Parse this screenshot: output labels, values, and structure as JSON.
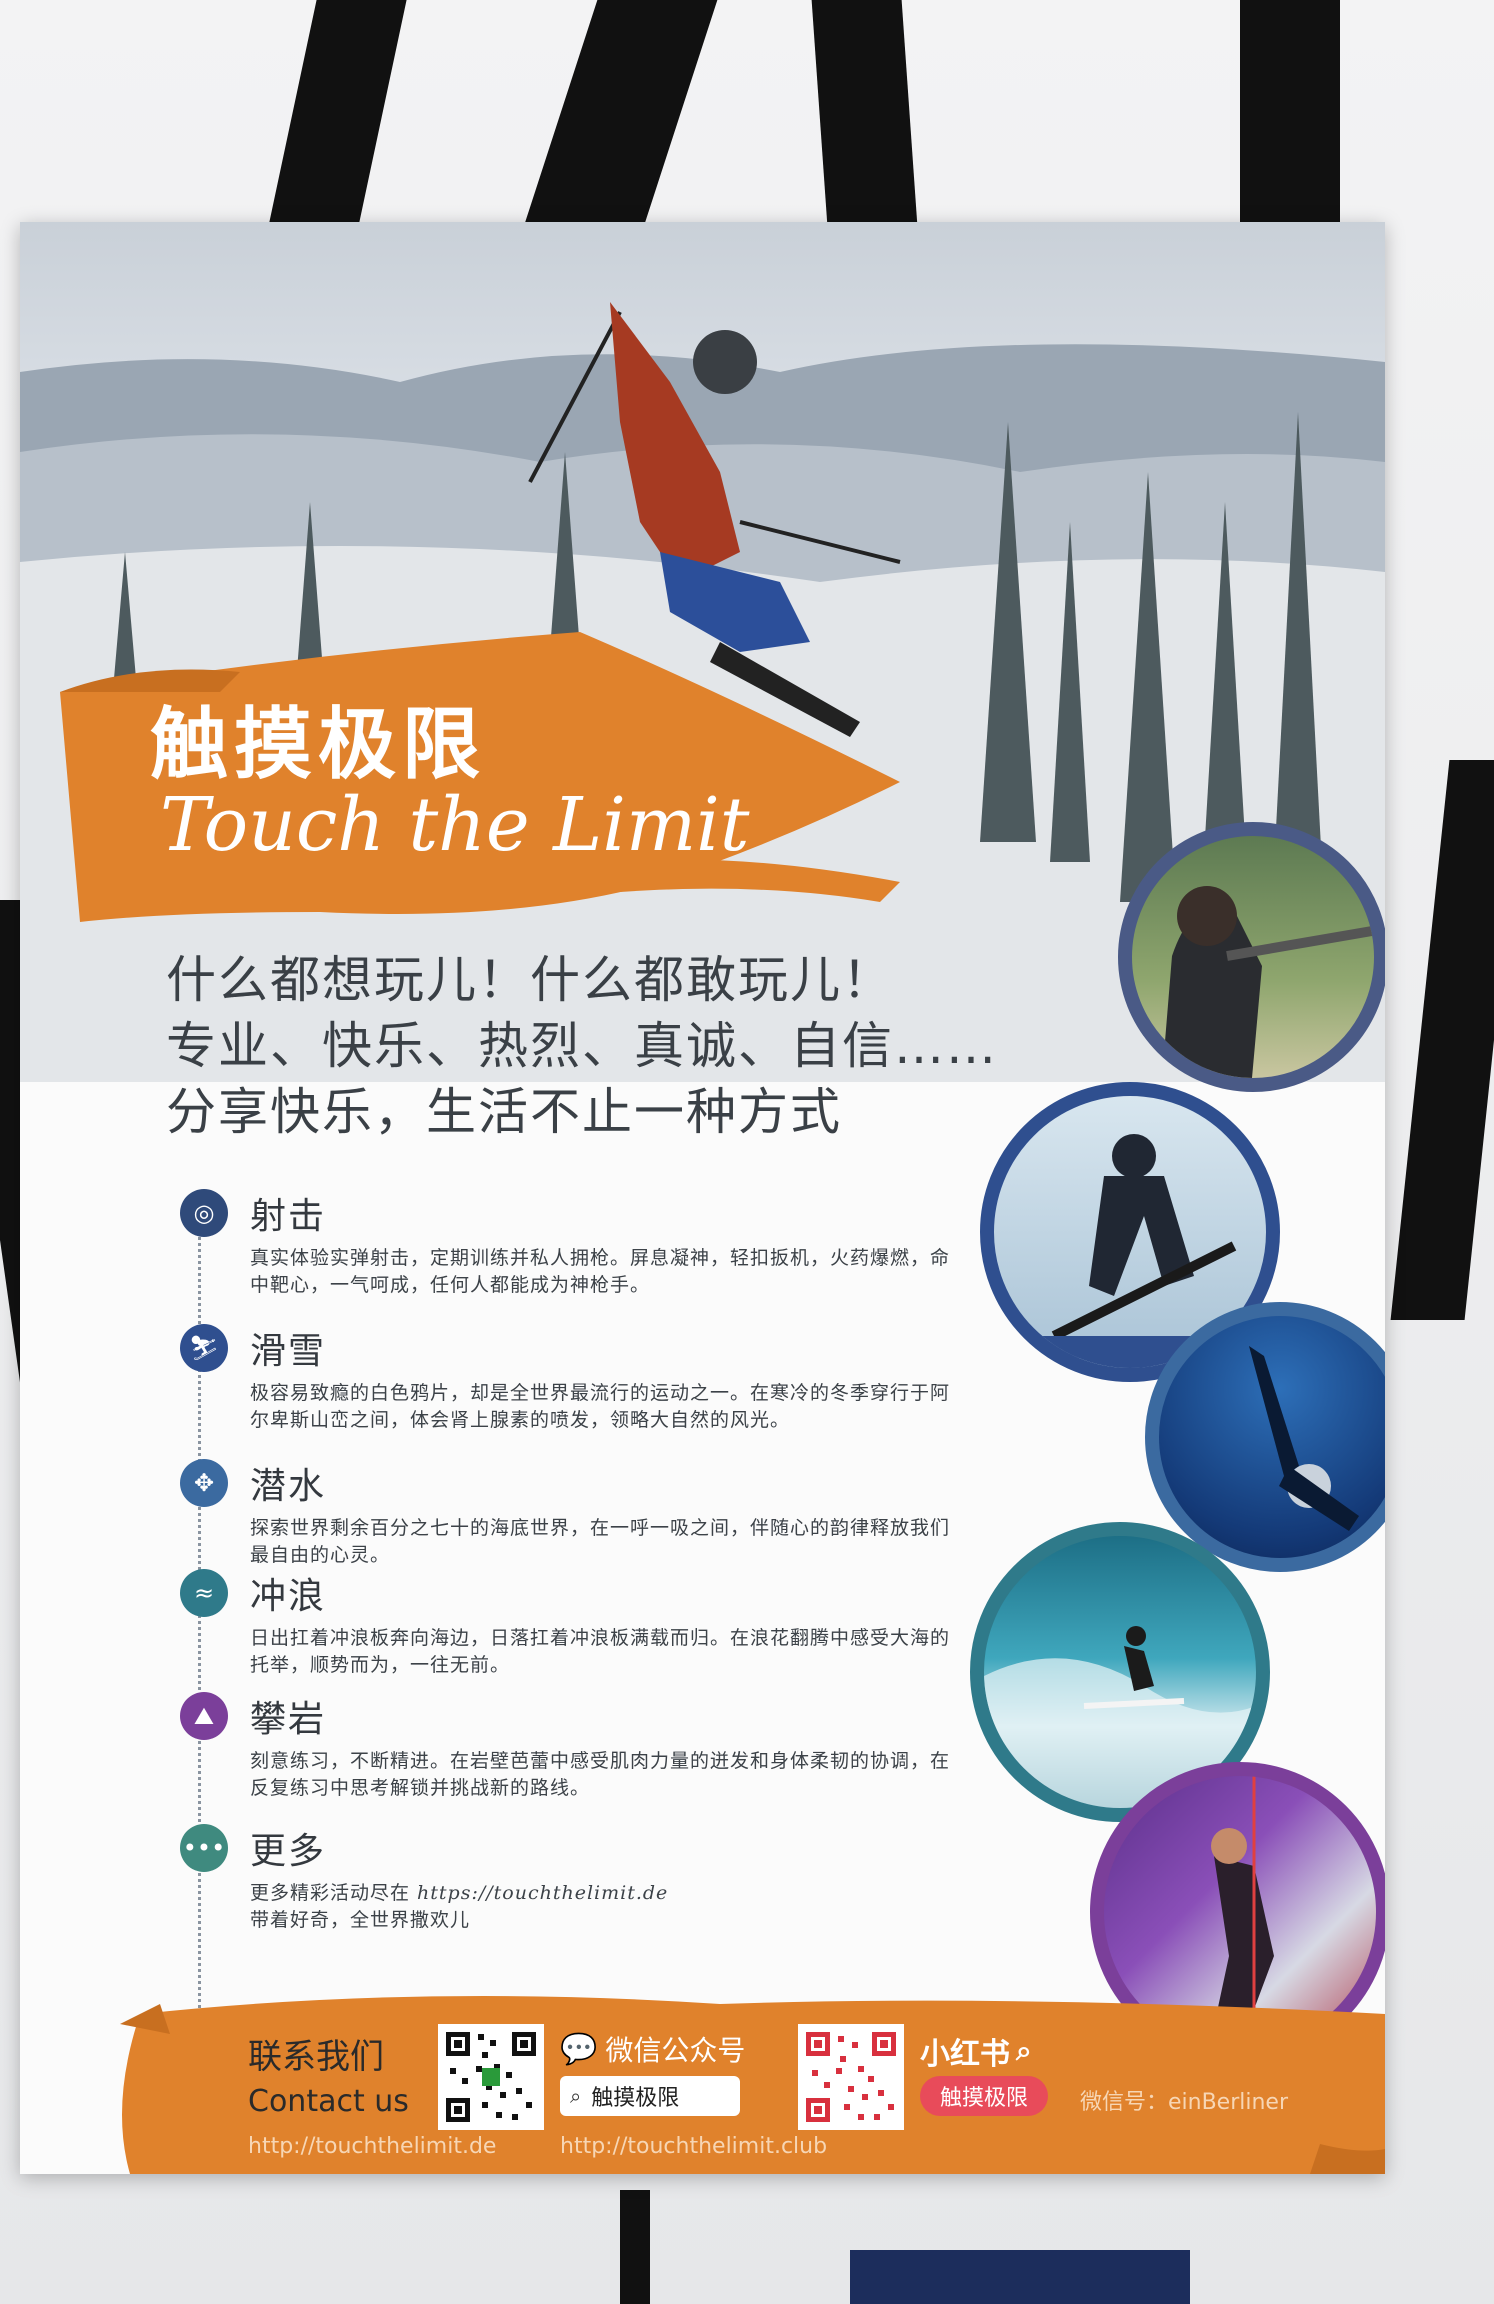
{
  "poster": {
    "title_cn": "触摸极限",
    "title_en": "Touch the Limit",
    "slogan": [
      "什么都想玩儿！什么都敢玩儿！",
      "专业、快乐、热烈、真诚、自信……",
      "分享快乐，生活不止一种方式"
    ]
  },
  "activities": [
    {
      "icon": "target-icon",
      "title": "射击",
      "desc": "真实体验实弹射击，定期训练并私人拥枪。屏息凝神，轻扣扳机，火药爆燃，命中靶心，一气呵成，任何人都能成为神枪手。"
    },
    {
      "icon": "ski-icon",
      "title": "滑雪",
      "desc": "极容易致瘾的白色鸦片，却是全世界最流行的运动之一。在寒冷的冬季穿行于阿尔卑斯山峦之间，体会肾上腺素的喷发，领略大自然的风光。"
    },
    {
      "icon": "fins-icon",
      "title": "潜水",
      "desc": "探索世界剩余百分之七十的海底世界，在一呼一吸之间，伴随心的韵律释放我们最自由的心灵。"
    },
    {
      "icon": "surf-icon",
      "title": "冲浪",
      "desc": "日出扛着冲浪板奔向海边，日落扛着冲浪板满载而归。在浪花翻腾中感受大海的托举，顺势而为，一往无前。"
    },
    {
      "icon": "climb-icon",
      "title": "攀岩",
      "desc": "刻意练习，不断精进。在岩壁芭蕾中感受肌肉力量的迸发和身体柔韧的协调，在反复练习中思考解锁并挑战新的路线。"
    },
    {
      "icon": "more-icon",
      "title": "更多",
      "desc_prefix": "更多精彩活动尽在 ",
      "desc_url": "https://touchthelimit.de",
      "desc_line2": "带着好奇，全世界撒欢儿"
    }
  ],
  "footer": {
    "contact_cn": "联系我们",
    "contact_en": "Contact us",
    "wechat_label": "微信公众号",
    "wechat_search": "触摸极限",
    "xhs_label": "小红书",
    "xhs_search": "触摸极限",
    "wechat_id": "微信号：einBerliner",
    "url_de": "http://touchthelimit.de",
    "url_club": "http://touchthelimit.club"
  },
  "colors": {
    "accent_orange": "#e0822c",
    "shoot": "#2f4a7a",
    "ski": "#2f4f8f",
    "dive": "#3b6aa0",
    "surf": "#2f7a8a",
    "climb": "#7b3f9a",
    "more": "#3f8a7f"
  }
}
